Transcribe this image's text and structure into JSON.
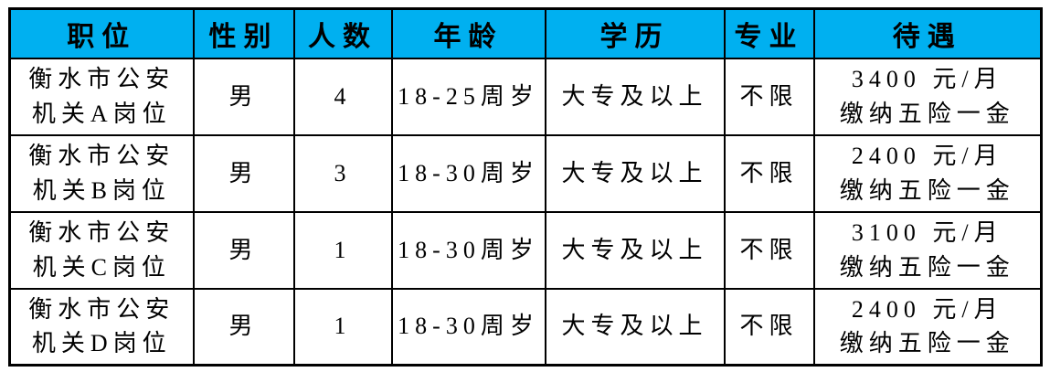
{
  "colors": {
    "header_background": "#00B0F0",
    "border": "#000000",
    "text": "#000000",
    "page_background": "#FFFFFF"
  },
  "table": {
    "columns": [
      "职位",
      "性别",
      "人数",
      "年龄",
      "学历",
      "专业",
      "待遇"
    ],
    "rows": [
      {
        "position_line1": "衡水市公安",
        "position_line2": "机关A岗位",
        "gender": "男",
        "count": "4",
        "age": "18-25周岁",
        "education": "大专及以上",
        "major": "不限",
        "salary": "3400 元/月",
        "welfare": "缴纳五险一金"
      },
      {
        "position_line1": "衡水市公安",
        "position_line2": "机关B岗位",
        "gender": "男",
        "count": "3",
        "age": "18-30周岁",
        "education": "大专及以上",
        "major": "不限",
        "salary": "2400 元/月",
        "welfare": "缴纳五险一金"
      },
      {
        "position_line1": "衡水市公安",
        "position_line2": "机关C岗位",
        "gender": "男",
        "count": "1",
        "age": "18-30周岁",
        "education": "大专及以上",
        "major": "不限",
        "salary": "3100 元/月",
        "welfare": "缴纳五险一金"
      },
      {
        "position_line1": "衡水市公安",
        "position_line2": "机关D岗位",
        "gender": "男",
        "count": "1",
        "age": "18-30周岁",
        "education": "大专及以上",
        "major": "不限",
        "salary": "2400 元/月",
        "welfare": "缴纳五险一金"
      }
    ]
  }
}
